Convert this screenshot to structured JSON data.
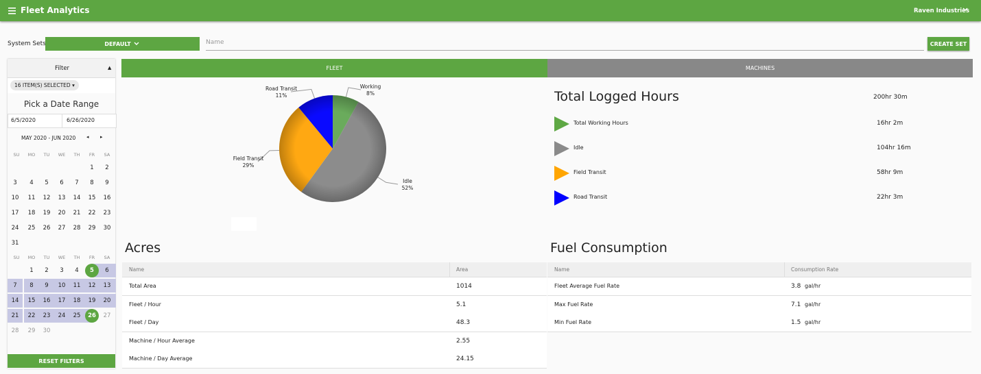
{
  "header": {
    "title": "Fleet Analytics",
    "account": "Raven Industries"
  },
  "toolbar": {
    "label": "System Sets",
    "set": "DEFAULT",
    "name_placeholder": "Name",
    "create": "CREATE SET"
  },
  "filter": {
    "title": "Filter",
    "chip": "16 ITEM(S) SELECTED",
    "date_title": "Pick a Date Range",
    "start": "6/5/2020",
    "end": "6/26/2020",
    "range_label": "MAY 2020 - JUN 2020",
    "weekdays": [
      "SU",
      "MO",
      "TU",
      "WE",
      "TH",
      "FR",
      "SA"
    ],
    "months": [
      {
        "days": [
          1,
          2,
          3,
          4,
          5,
          6,
          7,
          8,
          9,
          10,
          11,
          12,
          13,
          14,
          15,
          16,
          17,
          18,
          19,
          20,
          21,
          22,
          23,
          24,
          25,
          26,
          27,
          28,
          29,
          30,
          31
        ]
      },
      {
        "days": [
          1,
          2,
          3,
          4,
          5,
          6,
          7,
          8,
          9,
          10,
          11,
          12,
          13,
          14,
          15,
          16,
          17,
          18,
          19,
          20,
          21,
          22,
          23,
          24,
          25,
          26,
          27,
          28,
          29,
          30
        ]
      }
    ],
    "reset": "RESET FILTERS"
  },
  "tabs": [
    "FLEET",
    "MACHINES"
  ],
  "chart_data": {
    "type": "pie",
    "categories": [
      "Working",
      "Idle",
      "Field Transit",
      "Road Transit"
    ],
    "values": [
      8,
      52,
      29,
      11
    ],
    "value_labels": [
      "8%",
      "52%",
      "29%",
      "11%"
    ],
    "colors": [
      "#6aab5c",
      "#8c8c8c",
      "#ffa812",
      "#0a0aff"
    ]
  },
  "logged": {
    "title": "Total Logged Hours",
    "total": "200hr 30m",
    "rows": [
      {
        "label": "Total Working Hours",
        "value": "16hr 2m",
        "color": "#5ea844"
      },
      {
        "label": "Idle",
        "value": "104hr 16m",
        "color": "#8a8a8a"
      },
      {
        "label": "Field Transit",
        "value": "58hr 9m",
        "color": "#ffa500"
      },
      {
        "label": "Road Transit",
        "value": "22hr 3m",
        "color": "#0000ff"
      }
    ]
  },
  "acres": {
    "title": "Acres",
    "columns": [
      "Name",
      "Area"
    ],
    "rows": [
      [
        "Total Area",
        1014
      ],
      [
        "Fleet / Hour",
        5.1
      ],
      [
        "Fleet / Day",
        48.3
      ],
      [
        "Machine / Hour Average",
        2.55
      ],
      [
        "Machine / Day Average",
        24.15
      ]
    ]
  },
  "fuel": {
    "title": "Fuel Consumption",
    "columns": [
      "Name",
      "Consumption Rate"
    ],
    "rows": [
      [
        "Fleet Average Fuel Rate",
        3.8,
        "gal/hr"
      ],
      [
        "Max Fuel Rate",
        7.1,
        "gal/hr"
      ],
      [
        "Min Fuel Rate",
        1.5,
        "gal/hr"
      ]
    ]
  }
}
